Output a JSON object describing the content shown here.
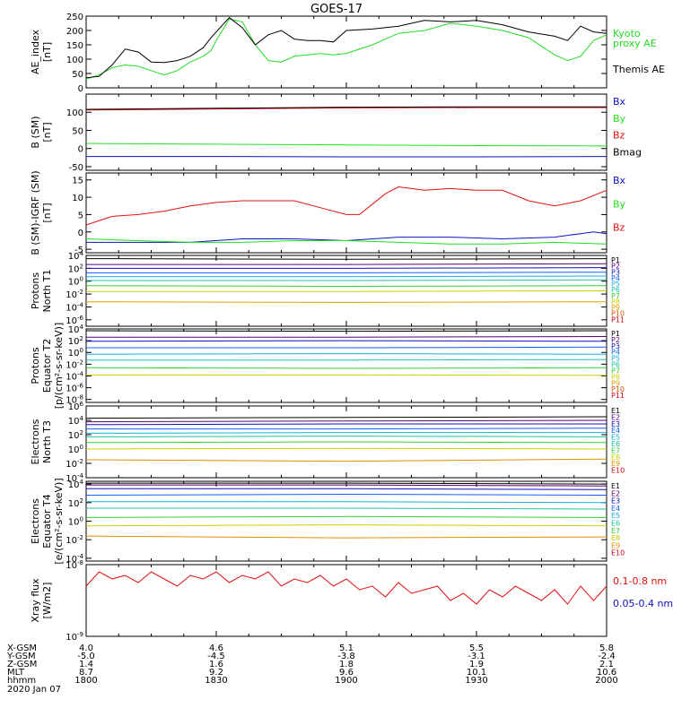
{
  "title": "GOES-17",
  "colors": {
    "black": "#000000",
    "red": "#e01010",
    "green": "#22dd22",
    "blue": "#1010c0",
    "P": [
      "#000000",
      "#5a007a",
      "#1010c0",
      "#1060ff",
      "#10b0e0",
      "#20c0a0",
      "#30d030",
      "#c8d000",
      "#e0a000",
      "#e05000",
      "#d00010"
    ],
    "E": [
      "#000000",
      "#5a007a",
      "#1010c0",
      "#1060ff",
      "#10b0e0",
      "#20c0a0",
      "#30d030",
      "#c8d000",
      "#e09000",
      "#d00010"
    ]
  },
  "chart_data": [
    {
      "type": "line",
      "name": "ae",
      "ylabel": [
        "AE_index",
        "[nT]"
      ],
      "yticks": [
        "0",
        "50",
        "100",
        "150",
        "200",
        "250"
      ],
      "ylim": [
        0,
        250
      ],
      "legend": [
        {
          "text": "Kyoto",
          "color": "green"
        },
        {
          "text": "proxy AE",
          "color": "green"
        },
        {
          "text": "Themis AE",
          "color": "black"
        }
      ],
      "series": [
        {
          "name": "Kyoto proxy AE",
          "color": "green",
          "x": [
            0,
            0.05,
            0.1,
            0.15,
            0.2,
            0.25,
            0.3,
            0.35,
            0.4,
            0.45,
            0.48,
            0.5,
            0.55,
            0.6,
            0.65,
            0.7,
            0.75,
            0.8,
            0.85,
            0.9,
            0.95,
            1.0,
            1.1,
            1.2,
            1.3,
            1.4,
            1.5,
            1.6,
            1.7,
            1.8,
            1.85,
            1.9,
            1.95,
            2.0
          ],
          "y": [
            30,
            45,
            70,
            80,
            75,
            60,
            45,
            60,
            90,
            110,
            130,
            165,
            240,
            230,
            150,
            95,
            90,
            110,
            115,
            120,
            115,
            120,
            150,
            190,
            200,
            225,
            215,
            200,
            175,
            115,
            95,
            110,
            165,
            185
          ]
        },
        {
          "name": "Themis AE",
          "color": "black",
          "x": [
            0,
            0.05,
            0.1,
            0.15,
            0.2,
            0.25,
            0.3,
            0.35,
            0.4,
            0.45,
            0.48,
            0.5,
            0.55,
            0.6,
            0.65,
            0.7,
            0.75,
            0.8,
            0.85,
            0.9,
            0.95,
            1.0,
            1.1,
            1.2,
            1.3,
            1.4,
            1.5,
            1.6,
            1.7,
            1.8,
            1.85,
            1.9,
            1.95,
            2.0
          ],
          "y": [
            35,
            40,
            80,
            135,
            125,
            90,
            88,
            95,
            110,
            140,
            175,
            195,
            245,
            210,
            150,
            185,
            200,
            170,
            165,
            165,
            160,
            200,
            205,
            215,
            235,
            230,
            235,
            220,
            195,
            180,
            165,
            215,
            195,
            190
          ]
        }
      ]
    },
    {
      "type": "line",
      "name": "bsm",
      "ylabel": [
        "B (SM)",
        "[nT]"
      ],
      "yticks": [
        "-50",
        "0",
        "50",
        "100"
      ],
      "ylim": [
        -60,
        150
      ],
      "legend": [
        {
          "text": "Bx",
          "color": "blue"
        },
        {
          "text": "By",
          "color": "green"
        },
        {
          "text": "Bz",
          "color": "red"
        },
        {
          "text": "Bmag",
          "color": "black"
        }
      ],
      "series": [
        {
          "name": "Bz",
          "color": "red",
          "x": [
            0,
            0.5,
            1.0,
            1.5,
            2.0
          ],
          "y": [
            106,
            109,
            112,
            113,
            113
          ]
        },
        {
          "name": "Bmag",
          "color": "black",
          "x": [
            0,
            0.5,
            1.0,
            1.5,
            2.0
          ],
          "y": [
            108,
            111,
            114,
            115,
            115
          ]
        },
        {
          "name": "By",
          "color": "green",
          "x": [
            0,
            0.5,
            1.0,
            1.5,
            2.0
          ],
          "y": [
            14,
            12,
            10,
            8,
            7
          ]
        },
        {
          "name": "Bx",
          "color": "blue",
          "x": [
            0,
            0.5,
            1.0,
            1.5,
            2.0
          ],
          "y": [
            -22,
            -22,
            -23,
            -23,
            -22
          ]
        }
      ]
    },
    {
      "type": "line",
      "name": "bdiff",
      "ylabel": [
        "B (SM)-IGRF (SM)",
        "[nT]"
      ],
      "yticks": [
        "-5",
        "0",
        "5",
        "10",
        "15"
      ],
      "ylim": [
        -6,
        17
      ],
      "legend": [
        {
          "text": "Bx",
          "color": "blue"
        },
        {
          "text": "By",
          "color": "green"
        },
        {
          "text": "Bz",
          "color": "red"
        }
      ],
      "series": [
        {
          "name": "Bz",
          "color": "red",
          "x": [
            0,
            0.1,
            0.2,
            0.3,
            0.4,
            0.5,
            0.6,
            0.7,
            0.8,
            0.9,
            1.0,
            1.05,
            1.1,
            1.15,
            1.2,
            1.3,
            1.4,
            1.5,
            1.6,
            1.7,
            1.8,
            1.9,
            2.0
          ],
          "y": [
            2,
            4.5,
            5,
            6,
            7.5,
            8.5,
            9,
            9,
            9,
            7,
            5,
            5,
            8,
            11,
            13,
            12,
            12.5,
            12,
            12,
            9,
            7.5,
            9,
            12
          ]
        },
        {
          "name": "Bx",
          "color": "blue",
          "x": [
            0,
            0.2,
            0.4,
            0.6,
            0.8,
            1.0,
            1.2,
            1.4,
            1.6,
            1.8,
            1.9,
            1.95,
            2.0
          ],
          "y": [
            -3,
            -3,
            -3,
            -2,
            -2,
            -2.5,
            -1.5,
            -1.5,
            -2,
            -1.5,
            -0.5,
            0,
            -0.5
          ]
        },
        {
          "name": "By",
          "color": "green",
          "x": [
            0,
            0.2,
            0.4,
            0.6,
            0.8,
            1.0,
            1.2,
            1.4,
            1.6,
            1.8,
            2.0
          ],
          "y": [
            -2,
            -2.5,
            -3,
            -3,
            -2.5,
            -2.5,
            -3,
            -3.5,
            -3.5,
            -3,
            -3.5
          ]
        }
      ]
    },
    {
      "type": "line",
      "name": "p1",
      "ylabel": [
        "Protons",
        "North T1"
      ],
      "yticks": [
        "10^-6",
        "10^-4",
        "10^-2",
        "10^0",
        "10^2",
        "10^4"
      ],
      "ylim": [
        -7,
        4
      ],
      "log": true,
      "legend": [
        "P1",
        "P2",
        "P3",
        "P4",
        "P5",
        "P6",
        "P7",
        "P8",
        "P9",
        "P10",
        "P11"
      ],
      "series": [
        {
          "name": "P1",
          "levels": [
            3.5,
            3.4,
            3.5
          ]
        },
        {
          "name": "P2",
          "levels": [
            2.6,
            2.6,
            2.7
          ]
        },
        {
          "name": "P3",
          "levels": [
            2.0,
            2.0,
            2.1
          ]
        },
        {
          "name": "P4",
          "levels": [
            1.3,
            1.3,
            1.4
          ]
        },
        {
          "name": "P5",
          "levels": [
            0.7,
            0.7,
            0.8
          ]
        },
        {
          "name": "P6",
          "levels": [
            0.1,
            0.1,
            0.2
          ]
        },
        {
          "name": "P7",
          "levels": [
            -0.7,
            -0.8,
            -0.7
          ]
        },
        {
          "name": "P8",
          "levels": [
            -1.6,
            -1.6,
            -1.5
          ]
        },
        {
          "name": "P9",
          "levels": [
            -3.2,
            -3.3,
            -3.2
          ]
        }
      ]
    },
    {
      "type": "line",
      "name": "p2",
      "ylabel": [
        "Protons",
        "Equator T2",
        "[p/(cm²-s-sr-keV)]"
      ],
      "yticks": [
        "10^-8",
        "10^-6",
        "10^-4",
        "10^-2",
        "10^0",
        "10^2",
        "10^4"
      ],
      "ylim": [
        -8.5,
        4
      ],
      "log": true,
      "legend": [
        "P1",
        "P2",
        "P3",
        "P4",
        "P5",
        "P6",
        "P7",
        "P8",
        "P9",
        "P10",
        "P11"
      ],
      "series": [
        {
          "name": "P1",
          "levels": [
            3.7,
            3.6,
            3.7
          ]
        },
        {
          "name": "P2",
          "levels": [
            2.6,
            2.6,
            2.7
          ]
        },
        {
          "name": "P3",
          "levels": [
            1.9,
            2.0,
            1.9
          ]
        },
        {
          "name": "P4",
          "levels": [
            0.8,
            0.8,
            0.9
          ]
        },
        {
          "name": "P5",
          "levels": [
            -0.3,
            -0.2,
            -0.3
          ]
        },
        {
          "name": "P6",
          "levels": [
            -1.3,
            -1.3,
            -1.2
          ]
        },
        {
          "name": "P7",
          "levels": [
            -2.6,
            -2.7,
            -2.6
          ]
        },
        {
          "name": "P8",
          "levels": [
            -3.8,
            -3.8,
            -3.9
          ]
        }
      ]
    },
    {
      "type": "line",
      "name": "e1",
      "ylabel": [
        "Electrons",
        "North T3"
      ],
      "yticks": [
        "10^-4",
        "10^-2",
        "10^0",
        "10^2",
        "10^4",
        "10^6"
      ],
      "ylim": [
        -4,
        6
      ],
      "log": true,
      "legend": [
        "E1",
        "E2",
        "E3",
        "E4",
        "E5",
        "E6",
        "E7",
        "E8",
        "E9",
        "E10"
      ],
      "series": [
        {
          "name": "E1",
          "levels": [
            4.3,
            4.4,
            4.5
          ]
        },
        {
          "name": "E2",
          "levels": [
            3.8,
            3.9,
            4.0
          ]
        },
        {
          "name": "E3",
          "levels": [
            3.4,
            3.5,
            3.5
          ]
        },
        {
          "name": "E4",
          "levels": [
            2.8,
            2.8,
            2.9
          ]
        },
        {
          "name": "E5",
          "levels": [
            2.2,
            2.3,
            2.3
          ]
        },
        {
          "name": "E6",
          "levels": [
            1.7,
            1.8,
            1.7
          ]
        },
        {
          "name": "E7",
          "levels": [
            0.9,
            1.0,
            0.9
          ]
        },
        {
          "name": "E8",
          "levels": [
            0,
            0.1,
            0
          ]
        },
        {
          "name": "E9",
          "levels": [
            -1.5,
            -1.7,
            -1.4
          ]
        }
      ]
    },
    {
      "type": "line",
      "name": "e2",
      "ylabel": [
        "Electrons",
        "Equator T4",
        "[e/(cm²-s-sr-keV)]"
      ],
      "yticks": [
        "10^-4",
        "10^-2",
        "10^0",
        "10^2",
        "10^4"
      ],
      "ylim": [
        -4.3,
        4.3
      ],
      "log": true,
      "legend": [
        "E1",
        "E2",
        "E3",
        "E4",
        "E5",
        "E6",
        "E7",
        "E8",
        "E9",
        "E10"
      ],
      "series": [
        {
          "name": "E1",
          "levels": [
            4.1,
            4.1,
            4.0
          ]
        },
        {
          "name": "E2",
          "levels": [
            3.9,
            3.9,
            3.8
          ]
        },
        {
          "name": "E3",
          "levels": [
            3.5,
            3.5,
            3.4
          ]
        },
        {
          "name": "E4",
          "levels": [
            2.8,
            2.9,
            2.8
          ]
        },
        {
          "name": "E5",
          "levels": [
            2.1,
            2.1,
            2.0
          ]
        },
        {
          "name": "E6",
          "levels": [
            1.4,
            1.4,
            1.3
          ]
        },
        {
          "name": "E7",
          "levels": [
            0.4,
            0.5,
            0.4
          ]
        },
        {
          "name": "E8",
          "levels": [
            -0.5,
            -0.4,
            -0.5
          ]
        },
        {
          "name": "E9",
          "levels": [
            -1.6,
            -1.8,
            -1.7
          ]
        }
      ]
    },
    {
      "type": "line",
      "name": "xray",
      "ylabel": [
        "Xray flux",
        "[W/m2]"
      ],
      "yticks": [
        "10^-9",
        "10^-8"
      ],
      "ylim": [
        -9,
        -8
      ],
      "log": true,
      "legend": [
        {
          "text": "0.1-0.8 nm",
          "color": "red"
        },
        {
          "text": "0.05-0.4 nm",
          "color": "blue"
        }
      ],
      "series": [
        {
          "name": "0.1-0.8 nm",
          "color": "red",
          "x": [
            0,
            0.05,
            0.1,
            0.15,
            0.2,
            0.25,
            0.3,
            0.35,
            0.4,
            0.45,
            0.5,
            0.55,
            0.6,
            0.65,
            0.7,
            0.75,
            0.8,
            0.85,
            0.9,
            0.95,
            1.0,
            1.05,
            1.1,
            1.15,
            1.2,
            1.25,
            1.3,
            1.35,
            1.4,
            1.45,
            1.5,
            1.55,
            1.6,
            1.65,
            1.7,
            1.75,
            1.8,
            1.85,
            1.9,
            1.95,
            2.0
          ],
          "y": [
            -8.3,
            -8.1,
            -8.2,
            -8.15,
            -8.25,
            -8.1,
            -8.2,
            -8.3,
            -8.15,
            -8.2,
            -8.1,
            -8.25,
            -8.15,
            -8.2,
            -8.1,
            -8.3,
            -8.2,
            -8.25,
            -8.15,
            -8.3,
            -8.2,
            -8.35,
            -8.3,
            -8.45,
            -8.25,
            -8.4,
            -8.35,
            -8.3,
            -8.5,
            -8.4,
            -8.55,
            -8.35,
            -8.45,
            -8.3,
            -8.4,
            -8.5,
            -8.35,
            -8.55,
            -8.3,
            -8.5,
            -8.3
          ]
        }
      ]
    }
  ],
  "xaxis": {
    "ticks": [
      {
        "x": 0,
        "v": [
          "4.0",
          "-5.0",
          "1.4",
          "8.7",
          "1800"
        ]
      },
      {
        "x": 0.5,
        "v": [
          "4.6",
          "-4.5",
          "1.6",
          "9.2",
          "1830"
        ]
      },
      {
        "x": 1.0,
        "v": [
          "5.1",
          "-3.8",
          "1.8",
          "9.6",
          "1900"
        ]
      },
      {
        "x": 1.5,
        "v": [
          "5.5",
          "-3.1",
          "1.9",
          "10.1",
          "1930"
        ]
      },
      {
        "x": 2.0,
        "v": [
          "5.8",
          "-2.4",
          "2.1",
          "10.6",
          "2000"
        ]
      }
    ],
    "rows": [
      "X-GSM",
      "Y-GSM",
      "Z-GSM",
      "MLT",
      "hhmm"
    ],
    "date": "2020 Jan 07"
  }
}
